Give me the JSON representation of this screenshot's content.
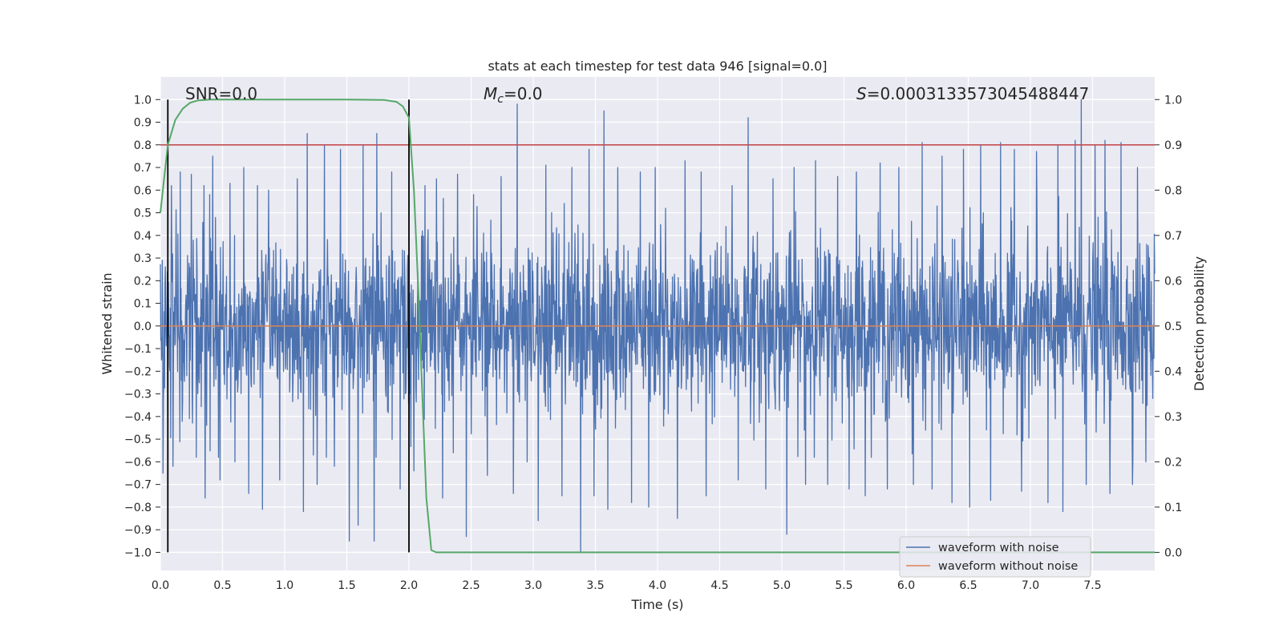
{
  "chart_data": {
    "type": "line",
    "title": "stats at each timestep for test data 946 [signal=0.0]",
    "xlabel": "Time (s)",
    "ylabel": "Whitened strain",
    "y2label": "Detection probability",
    "xlim": [
      0.0,
      8.0
    ],
    "ylim": [
      -1.08,
      1.1
    ],
    "y2lim": [
      -0.04,
      1.05
    ],
    "xticks": [
      "0.0",
      "0.5",
      "1.0",
      "1.5",
      "2.0",
      "2.5",
      "3.0",
      "3.5",
      "4.0",
      "4.5",
      "5.0",
      "5.5",
      "6.0",
      "6.5",
      "7.0",
      "7.5"
    ],
    "yticks": [
      "1.0",
      "0.9",
      "0.8",
      "0.7",
      "0.6",
      "0.5",
      "0.4",
      "0.3",
      "0.2",
      "0.1",
      "0.0",
      "−0.1",
      "−0.2",
      "−0.3",
      "−0.4",
      "−0.5",
      "−0.6",
      "−0.7",
      "−0.8",
      "−0.9",
      "−1.0"
    ],
    "y2ticks": [
      "1.0",
      "0.9",
      "0.8",
      "0.7",
      "0.6",
      "0.5",
      "0.4",
      "0.3",
      "0.2",
      "0.1",
      "0.0"
    ],
    "annotations": {
      "snr": "SNR=0.0",
      "mc_symbol": "M",
      "mc_sub": "c",
      "mc_value": "=0.0",
      "s_symbol": "S",
      "s_value": "=0.0003133573045488447"
    },
    "vertical_lines_x": [
      0.06,
      2.0
    ],
    "threshold": {
      "axis": "left",
      "y": 0.8
    },
    "legend": {
      "position": "lower-right",
      "entries": [
        "waveform with noise",
        "waveform without noise"
      ]
    },
    "series": [
      {
        "name": "waveform with noise",
        "color": "#4c72b0",
        "axis": "left",
        "style": "dense-noise",
        "x_range": [
          0.0,
          8.0
        ],
        "typical_envelope": 0.35,
        "spikes": [
          {
            "x": 0.02,
            "y": -0.65
          },
          {
            "x": 0.09,
            "y": 0.62
          },
          {
            "x": 0.1,
            "y": -0.62
          },
          {
            "x": 0.16,
            "y": 0.68
          },
          {
            "x": 0.25,
            "y": 0.67
          },
          {
            "x": 0.29,
            "y": -0.58
          },
          {
            "x": 0.35,
            "y": 0.62
          },
          {
            "x": 0.36,
            "y": -0.76
          },
          {
            "x": 0.42,
            "y": 0.75
          },
          {
            "x": 0.48,
            "y": -0.68
          },
          {
            "x": 0.56,
            "y": 0.63
          },
          {
            "x": 0.6,
            "y": -0.6
          },
          {
            "x": 0.67,
            "y": 0.7
          },
          {
            "x": 0.71,
            "y": -0.74
          },
          {
            "x": 0.78,
            "y": 0.62
          },
          {
            "x": 0.82,
            "y": -0.81
          },
          {
            "x": 0.87,
            "y": 0.6
          },
          {
            "x": 0.96,
            "y": -0.68
          },
          {
            "x": 1.1,
            "y": 0.65
          },
          {
            "x": 1.15,
            "y": -0.82
          },
          {
            "x": 1.18,
            "y": 0.85
          },
          {
            "x": 1.26,
            "y": -0.7
          },
          {
            "x": 1.32,
            "y": 0.8
          },
          {
            "x": 1.4,
            "y": -0.62
          },
          {
            "x": 1.45,
            "y": 0.78
          },
          {
            "x": 1.52,
            "y": -0.95
          },
          {
            "x": 1.59,
            "y": -0.88
          },
          {
            "x": 1.63,
            "y": 0.8
          },
          {
            "x": 1.72,
            "y": -0.95
          },
          {
            "x": 1.74,
            "y": 0.85
          },
          {
            "x": 1.86,
            "y": 0.68
          },
          {
            "x": 1.93,
            "y": -0.72
          },
          {
            "x": 2.04,
            "y": -0.64
          },
          {
            "x": 2.13,
            "y": 0.62
          },
          {
            "x": 2.22,
            "y": 0.65
          },
          {
            "x": 2.27,
            "y": -0.76
          },
          {
            "x": 2.39,
            "y": 0.67
          },
          {
            "x": 2.46,
            "y": -0.93
          },
          {
            "x": 2.52,
            "y": 0.58
          },
          {
            "x": 2.63,
            "y": -0.66
          },
          {
            "x": 2.74,
            "y": 0.66
          },
          {
            "x": 2.84,
            "y": -0.74
          },
          {
            "x": 2.87,
            "y": 0.98
          },
          {
            "x": 2.95,
            "y": -0.6
          },
          {
            "x": 3.04,
            "y": -0.86
          },
          {
            "x": 3.1,
            "y": 0.71
          },
          {
            "x": 3.23,
            "y": -0.75
          },
          {
            "x": 3.31,
            "y": 0.7
          },
          {
            "x": 3.38,
            "y": -1.0
          },
          {
            "x": 3.45,
            "y": 0.78
          },
          {
            "x": 3.49,
            "y": -0.75
          },
          {
            "x": 3.57,
            "y": 0.95
          },
          {
            "x": 3.6,
            "y": -0.81
          },
          {
            "x": 3.68,
            "y": 0.7
          },
          {
            "x": 3.79,
            "y": -0.78
          },
          {
            "x": 3.86,
            "y": 0.68
          },
          {
            "x": 3.93,
            "y": -0.8
          },
          {
            "x": 3.98,
            "y": 0.7
          },
          {
            "x": 4.16,
            "y": -0.85
          },
          {
            "x": 4.22,
            "y": 0.73
          },
          {
            "x": 4.35,
            "y": 0.68
          },
          {
            "x": 4.39,
            "y": -0.75
          },
          {
            "x": 4.6,
            "y": 0.62
          },
          {
            "x": 4.65,
            "y": -0.68
          },
          {
            "x": 4.73,
            "y": 0.92
          },
          {
            "x": 4.87,
            "y": -0.72
          },
          {
            "x": 4.93,
            "y": 0.65
          },
          {
            "x": 5.04,
            "y": -0.92
          },
          {
            "x": 5.1,
            "y": 0.7
          },
          {
            "x": 5.19,
            "y": -0.7
          },
          {
            "x": 5.27,
            "y": 0.73
          },
          {
            "x": 5.37,
            "y": -0.7
          },
          {
            "x": 5.45,
            "y": 0.66
          },
          {
            "x": 5.54,
            "y": -0.72
          },
          {
            "x": 5.6,
            "y": 0.68
          },
          {
            "x": 5.67,
            "y": -0.75
          },
          {
            "x": 5.79,
            "y": 0.72
          },
          {
            "x": 5.85,
            "y": -0.72
          },
          {
            "x": 5.94,
            "y": 0.7
          },
          {
            "x": 6.06,
            "y": -0.7
          },
          {
            "x": 6.13,
            "y": 0.81
          },
          {
            "x": 6.21,
            "y": -0.72
          },
          {
            "x": 6.29,
            "y": 0.75
          },
          {
            "x": 6.37,
            "y": -0.78
          },
          {
            "x": 6.46,
            "y": 0.78
          },
          {
            "x": 6.51,
            "y": -0.8
          },
          {
            "x": 6.6,
            "y": 0.8
          },
          {
            "x": 6.68,
            "y": -0.77
          },
          {
            "x": 6.76,
            "y": 0.81
          },
          {
            "x": 6.87,
            "y": 0.78
          },
          {
            "x": 6.93,
            "y": -0.73
          },
          {
            "x": 7.05,
            "y": 0.77
          },
          {
            "x": 7.14,
            "y": -0.78
          },
          {
            "x": 7.22,
            "y": 0.8
          },
          {
            "x": 7.26,
            "y": -0.82
          },
          {
            "x": 7.36,
            "y": 0.82
          },
          {
            "x": 7.41,
            "y": 1.0
          },
          {
            "x": 7.45,
            "y": -0.7
          },
          {
            "x": 7.52,
            "y": 0.8
          },
          {
            "x": 7.6,
            "y": 0.82
          },
          {
            "x": 7.64,
            "y": -0.74
          },
          {
            "x": 7.73,
            "y": 0.81
          },
          {
            "x": 7.82,
            "y": -0.7
          },
          {
            "x": 7.86,
            "y": 0.7
          },
          {
            "x": 7.93,
            "y": -0.6
          }
        ]
      },
      {
        "name": "waveform without noise",
        "color": "#dd8452",
        "axis": "left",
        "x": [
          0.0,
          8.0
        ],
        "y": [
          0.0,
          0.0
        ]
      },
      {
        "name": "detection probability",
        "color": "#55a868",
        "axis": "right",
        "x": [
          0.0,
          0.06,
          0.12,
          0.18,
          0.24,
          0.3,
          0.4,
          0.6,
          1.0,
          1.5,
          1.8,
          1.9,
          1.95,
          2.0,
          2.04,
          2.08,
          2.1,
          2.14,
          2.18,
          2.22,
          2.3,
          3.0,
          5.0,
          7.0,
          8.0
        ],
        "y": [
          0.75,
          0.9,
          0.955,
          0.98,
          0.993,
          0.998,
          1.0,
          1.0,
          1.0,
          1.0,
          0.999,
          0.995,
          0.985,
          0.96,
          0.8,
          0.55,
          0.4,
          0.12,
          0.005,
          0.0,
          0.0,
          0.0,
          0.0,
          0.0,
          0.0
        ]
      }
    ]
  }
}
